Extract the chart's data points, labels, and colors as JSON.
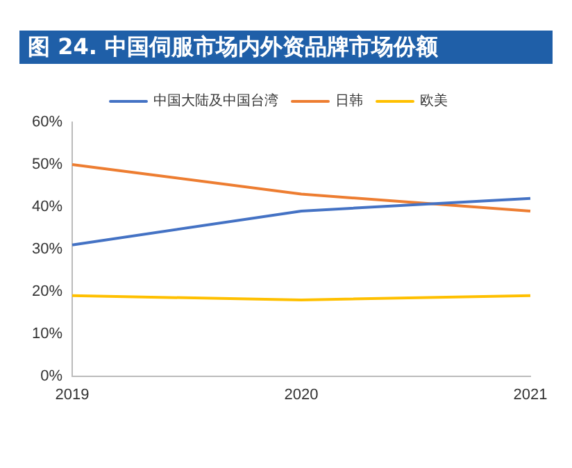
{
  "chart_data": {
    "type": "line",
    "title": "图 24. 中国伺服市场内外资品牌市场份额",
    "categories": [
      "2019",
      "2020",
      "2021"
    ],
    "series": [
      {
        "name": "中国大陆及中国台湾",
        "color": "#4472c4",
        "values": [
          31,
          39,
          42
        ]
      },
      {
        "name": "日韩",
        "color": "#ed7d31",
        "values": [
          50,
          43,
          39
        ]
      },
      {
        "name": "欧美",
        "color": "#ffc000",
        "values": [
          19,
          18,
          19
        ]
      }
    ],
    "ylim": [
      0,
      60
    ],
    "yticks": [
      {
        "value": 0,
        "label": "0%"
      },
      {
        "value": 10,
        "label": "10%"
      },
      {
        "value": 20,
        "label": "20%"
      },
      {
        "value": 30,
        "label": "30%"
      },
      {
        "value": 40,
        "label": "40%"
      },
      {
        "value": 50,
        "label": "50%"
      },
      {
        "value": 60,
        "label": "60%"
      }
    ],
    "grid": false,
    "legend": "top",
    "marker": "none",
    "line_style": "solid"
  }
}
